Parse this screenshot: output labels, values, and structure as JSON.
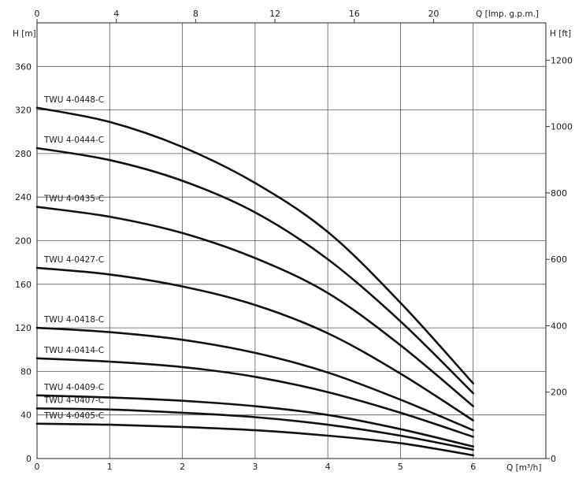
{
  "chart_data": {
    "type": "line",
    "x_label": "Q [m³/h]",
    "x_ticks": [
      "0",
      "1",
      "2",
      "3",
      "4",
      "5",
      "6"
    ],
    "x_range": [
      0,
      7
    ],
    "top_x_label": "Q [Imp. g.p.m.]",
    "top_x_ticks": [
      "0",
      "4",
      "8",
      "12",
      "16",
      "20"
    ],
    "y_label": "H [m]",
    "y_ticks": [
      "0",
      "40",
      "80",
      "120",
      "160",
      "200",
      "240",
      "280",
      "320",
      "360"
    ],
    "y_range": [
      0,
      400
    ],
    "right_y_label": "H [ft]",
    "right_y_ticks": [
      "0",
      "200",
      "400",
      "600",
      "800",
      "1000",
      "1200"
    ],
    "grid": true,
    "series": [
      {
        "name": "TWU 4-0448-C",
        "x": [
          0,
          1,
          2,
          3,
          4,
          5,
          6
        ],
        "values": [
          322,
          309,
          286,
          253,
          208,
          143,
          69
        ]
      },
      {
        "name": "TWU 4-0444-C",
        "x": [
          0,
          1,
          2,
          3,
          4,
          5,
          6
        ],
        "values": [
          285,
          274,
          255,
          226,
          183,
          126,
          60
        ]
      },
      {
        "name": "TWU 4-0435-C",
        "x": [
          0,
          1,
          2,
          3,
          4,
          5,
          6
        ],
        "values": [
          231,
          222,
          207,
          184,
          152,
          104,
          48
        ]
      },
      {
        "name": "TWU 4-0427-C",
        "x": [
          0,
          1,
          2,
          3,
          4,
          5,
          6
        ],
        "values": [
          175,
          169,
          158,
          141,
          115,
          78,
          35
        ]
      },
      {
        "name": "TWU 4-0418-C",
        "x": [
          0,
          1,
          2,
          3,
          4,
          5,
          6
        ],
        "values": [
          120,
          116,
          109,
          97,
          79,
          54,
          26
        ]
      },
      {
        "name": "TWU 4-0414-C",
        "x": [
          0,
          1,
          2,
          3,
          4,
          5,
          6
        ],
        "values": [
          92,
          89,
          84,
          75,
          61,
          42,
          20
        ]
      },
      {
        "name": "TWU 4-0409-C",
        "x": [
          0,
          1,
          2,
          3,
          4,
          5,
          6
        ],
        "values": [
          58,
          56,
          53,
          48,
          40,
          27,
          11
        ]
      },
      {
        "name": "TWU 4-0407-C",
        "x": [
          0,
          1,
          2,
          3,
          4,
          5,
          6
        ],
        "values": [
          46,
          45,
          42,
          38,
          31,
          21,
          8
        ]
      },
      {
        "name": "TWU 4-0405-C",
        "x": [
          0,
          1,
          2,
          3,
          4,
          5,
          6
        ],
        "values": [
          32,
          31,
          29,
          26,
          21,
          14,
          3
        ]
      }
    ]
  }
}
